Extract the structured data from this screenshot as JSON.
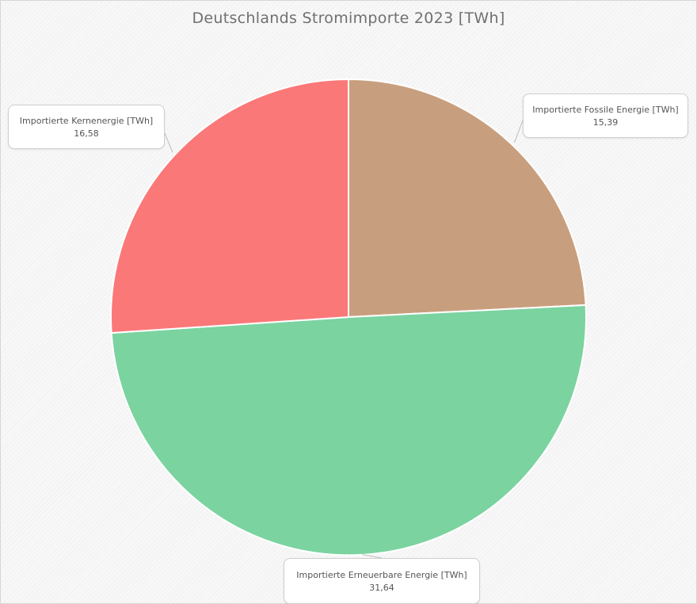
{
  "chart_data": {
    "type": "pie",
    "title": "Deutschlands Stromimporte 2023 [TWh]",
    "slices": [
      {
        "label": "Importierte Fossile Energie [TWh]",
        "value": 15.39,
        "value_label": "15,39",
        "color": "#c89f7e"
      },
      {
        "label": "Importierte Erneuerbare  Energie [TWh]",
        "value": 31.64,
        "value_label": "31,64",
        "color": "#7bd3a0"
      },
      {
        "label": "Importierte Kernenergie  [TWh]",
        "value": 16.58,
        "value_label": "16,58",
        "color": "#fb7878"
      }
    ],
    "legend": "callouts"
  }
}
